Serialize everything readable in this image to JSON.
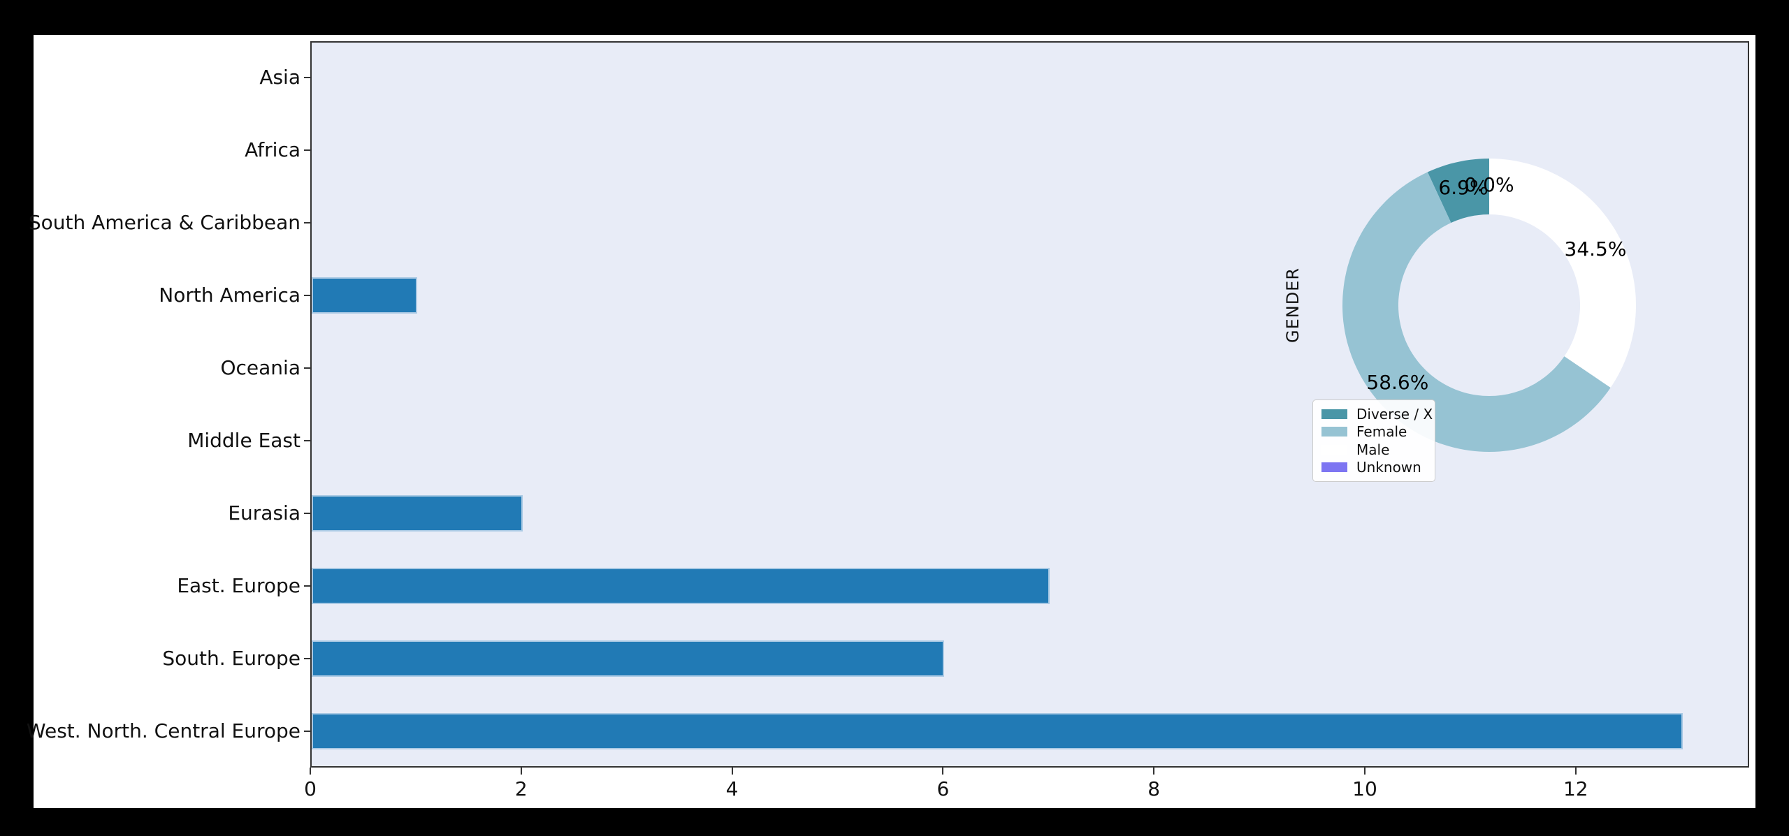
{
  "figure": {
    "kind": "matplotlib-figure-screenshot",
    "title": ""
  },
  "colors": {
    "outer_bg": "#000000",
    "figure_bg": "#ffffff",
    "plot_bg": "#e8ecf7",
    "bar_color": "#217ab5",
    "bar_edge": "#a9c9e4",
    "spine": "#333333",
    "text": "#111111",
    "legend_bg": "rgba(255,255,255,0.92)",
    "legend_border": "#cccccc"
  },
  "chart_data": [
    {
      "type": "bar",
      "orientation": "horizontal",
      "title": "",
      "xlabel": "",
      "ylabel": "",
      "categories": [
        "Asia",
        "Africa",
        "South America & Caribbean",
        "North America",
        "Oceania",
        "Middle East",
        "Eurasia",
        "East. Europe",
        "South. Europe",
        "West. North. Central Europe"
      ],
      "values": [
        0,
        0,
        0,
        1,
        0,
        0,
        2,
        7,
        6,
        13
      ],
      "x_ticks": [
        0,
        2,
        4,
        6,
        8,
        10,
        12
      ],
      "x_tick_labels": [
        "0",
        "2",
        "4",
        "6",
        "8",
        "10",
        "12"
      ],
      "xlim": [
        0,
        13.65
      ],
      "grid": false,
      "legend_position": "none"
    },
    {
      "type": "pie",
      "subtype": "donut",
      "title": "GENDER",
      "labels": [
        "Diverse / X",
        "Female",
        "Male",
        "Unknown"
      ],
      "values_pct": [
        6.9,
        58.6,
        34.5,
        0.0
      ],
      "pct_labels": [
        "6.9%",
        "58.6%",
        "34.5%",
        "0.0%"
      ],
      "colors": [
        "#4a96a7",
        "#96c3d3",
        "#ffffff",
        "#7d75f2"
      ],
      "start_angle": 90,
      "counterclockwise": true,
      "legend_position": "lower left"
    }
  ]
}
